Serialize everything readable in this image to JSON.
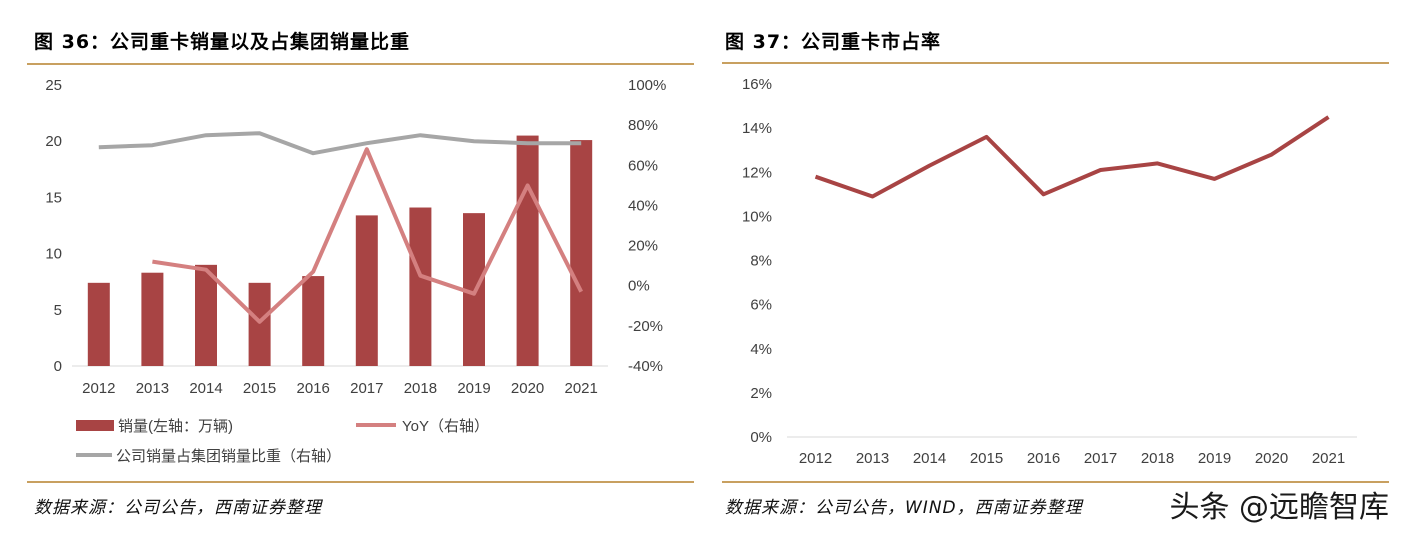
{
  "chart_data": [
    {
      "type": "bar+line",
      "title": "图 36：公司重卡销量以及占集团销量比重",
      "categories": [
        "2012",
        "2013",
        "2014",
        "2015",
        "2016",
        "2017",
        "2018",
        "2019",
        "2020",
        "2021"
      ],
      "left_axis": {
        "ticks": [
          "0",
          "5",
          "10",
          "15",
          "20",
          "25"
        ],
        "ylim": [
          0,
          25
        ]
      },
      "right_axis": {
        "ticks": [
          "-40%",
          "-20%",
          "0%",
          "20%",
          "40%",
          "60%",
          "80%",
          "100%"
        ],
        "ylim": [
          -40,
          100
        ]
      },
      "series": [
        {
          "name": "销量(左轴：万辆)",
          "type": "bar",
          "axis": "left",
          "color": "#a84444",
          "values": [
            7.4,
            8.3,
            9.0,
            7.4,
            8.0,
            13.4,
            14.1,
            13.6,
            20.5,
            20.1
          ]
        },
        {
          "name": "YoY（右轴）",
          "type": "line",
          "axis": "right",
          "color": "#d48080",
          "values": [
            null,
            12,
            8,
            -18,
            7,
            68,
            5,
            -4,
            50,
            -3
          ]
        },
        {
          "name": "公司销量占集团销量比重（右轴）",
          "type": "line",
          "axis": "right",
          "color": "#a6a6a6",
          "values": [
            69,
            70,
            75,
            76,
            66,
            71,
            75,
            72,
            71,
            71
          ]
        }
      ]
    },
    {
      "type": "line",
      "title": "图 37：公司重卡市占率",
      "categories": [
        "2012",
        "2013",
        "2014",
        "2015",
        "2016",
        "2017",
        "2018",
        "2019",
        "2020",
        "2021"
      ],
      "y_axis": {
        "ticks": [
          "0%",
          "2%",
          "4%",
          "6%",
          "8%",
          "10%",
          "12%",
          "14%",
          "16%"
        ],
        "ylim": [
          0,
          16
        ]
      },
      "series": [
        {
          "name": "市占率",
          "color": "#a84444",
          "values": [
            11.8,
            10.9,
            12.3,
            13.6,
            11.0,
            12.1,
            12.4,
            11.7,
            12.8,
            14.5
          ]
        }
      ]
    }
  ],
  "source_left": "数据来源：公司公告，西南证券整理",
  "source_right": "数据来源：公司公告，WIND，西南证券整理",
  "watermark": "头条 @远瞻智库"
}
